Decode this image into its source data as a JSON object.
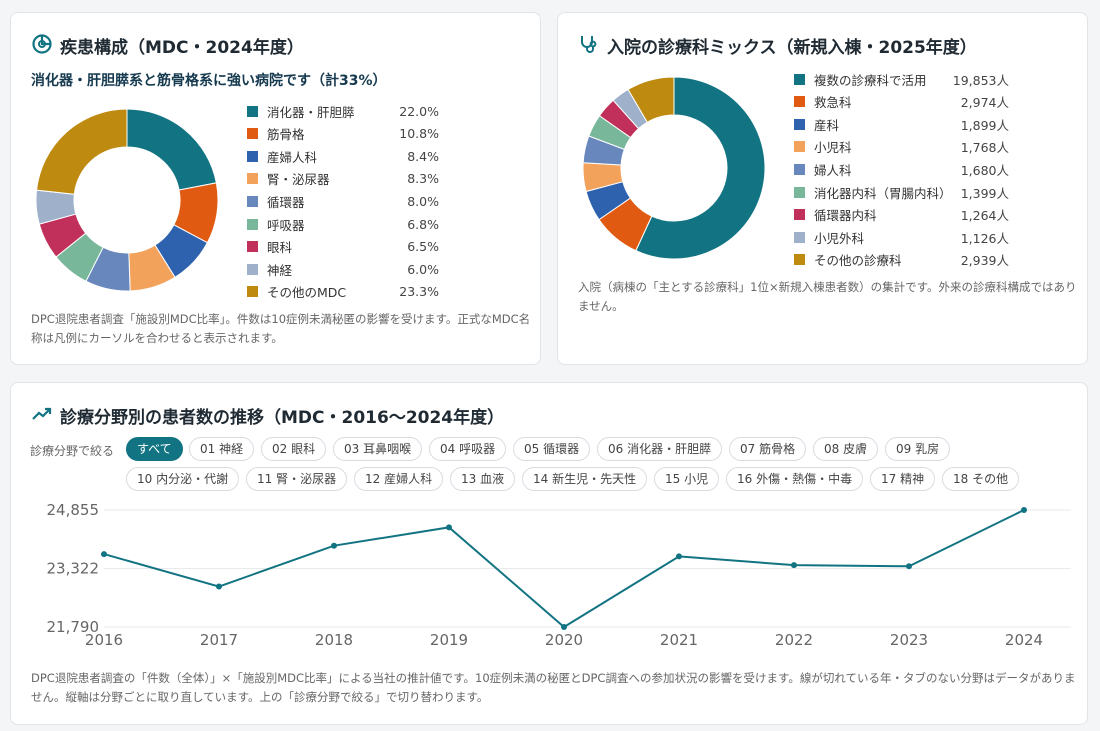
{
  "colors": {
    "teal": "#127482",
    "orange": "#e15a12",
    "blue": "#2e62ae",
    "lightorange": "#f3a25c",
    "steel": "#6887bd",
    "green": "#79b79a",
    "crimson": "#c1305a",
    "lightsteel": "#9fb0cb",
    "gold": "#bf8a10",
    "accent": "#127482"
  },
  "card1": {
    "title": "疾患構成（MDC・2024年度）",
    "icon": "pie-chart-icon",
    "subheading": "消化器・肝胆膵系と筋骨格系に強い病院です（計33%）",
    "legend": [
      {
        "label": "消化器・肝胆膵",
        "value": "22.0%",
        "color": "#127482"
      },
      {
        "label": "筋骨格",
        "value": "10.8%",
        "color": "#e15a12"
      },
      {
        "label": "産婦人科",
        "value": "8.4%",
        "color": "#2e62ae"
      },
      {
        "label": "腎・泌尿器",
        "value": "8.3%",
        "color": "#f3a25c"
      },
      {
        "label": "循環器",
        "value": "8.0%",
        "color": "#6887bd"
      },
      {
        "label": "呼吸器",
        "value": "6.8%",
        "color": "#79b79a"
      },
      {
        "label": "眼科",
        "value": "6.5%",
        "color": "#c1305a"
      },
      {
        "label": "神経",
        "value": "6.0%",
        "color": "#9fb0cb"
      },
      {
        "label": "その他のMDC",
        "value": "23.3%",
        "color": "#bf8a10"
      }
    ],
    "note": "DPC退院患者調査「施設別MDC比率」。件数は10症例未満秘匿の影響を受けます。正式なMDC名称は凡例にカーソルを合わせると表示されます。"
  },
  "card2": {
    "title": "入院の診療科ミックス（新規入棟・2025年度）",
    "icon": "stethoscope-icon",
    "legend": [
      {
        "label": "複数の診療科で活用",
        "value": "19,853人",
        "count": 19853,
        "color": "#127482"
      },
      {
        "label": "救急科",
        "value": "2,974人",
        "count": 2974,
        "color": "#e15a12"
      },
      {
        "label": "産科",
        "value": "1,899人",
        "count": 1899,
        "color": "#2e62ae"
      },
      {
        "label": "小児科",
        "value": "1,768人",
        "count": 1768,
        "color": "#f3a25c"
      },
      {
        "label": "婦人科",
        "value": "1,680人",
        "count": 1680,
        "color": "#6887bd"
      },
      {
        "label": "消化器内科（胃腸内科）",
        "value": "1,399人",
        "count": 1399,
        "color": "#79b79a"
      },
      {
        "label": "循環器内科",
        "value": "1,264人",
        "count": 1264,
        "color": "#c1305a"
      },
      {
        "label": "小児外科",
        "value": "1,126人",
        "count": 1126,
        "color": "#9fb0cb"
      },
      {
        "label": "その他の診療科",
        "value": "2,939人",
        "count": 2939,
        "color": "#bf8a10"
      }
    ],
    "note": "入院（病棟の「主とする診療科」1位×新規入棟患者数）の集計です。外来の診療科構成ではありません。"
  },
  "card3": {
    "title": "診療分野別の患者数の推移（MDC・2016〜2024年度）",
    "icon": "trend-up-icon",
    "filter_label": "診療分野で絞る",
    "chips": [
      "すべて",
      "01 神経",
      "02 眼科",
      "03 耳鼻咽喉",
      "04 呼吸器",
      "05 循環器",
      "06 消化器・肝胆膵",
      "07 筋骨格",
      "08 皮膚",
      "09 乳房",
      "10 内分泌・代謝",
      "11 腎・泌尿器",
      "12 産婦人科",
      "13 血液",
      "14 新生児・先天性",
      "15 小児",
      "16 外傷・熱傷・中毒",
      "17 精神",
      "18 その他"
    ],
    "active_chip": 0,
    "note": "DPC退院患者調査の「件数（全体）」×「施設別MDC比率」による当社の推計値です。10症例未満の秘匿とDPC調査への参加状況の影響を受けます。線が切れている年・タブのない分野はデータがありません。縦軸は分野ごとに取り直しています。上の「診療分野で絞る」で切り替わります。"
  },
  "chart_data": [
    {
      "type": "pie",
      "variant": "donut",
      "categories": [
        "消化器・肝胆膵",
        "筋骨格",
        "産婦人科",
        "腎・泌尿器",
        "循環器",
        "呼吸器",
        "眼科",
        "神経",
        "その他のMDC"
      ],
      "values": [
        22.0,
        10.8,
        8.4,
        8.3,
        8.0,
        6.8,
        6.5,
        6.0,
        23.3
      ]
    },
    {
      "type": "pie",
      "variant": "donut",
      "categories": [
        "複数の診療科で活用",
        "救急科",
        "産科",
        "小児科",
        "婦人科",
        "消化器内科（胃腸内科）",
        "循環器内科",
        "小児外科",
        "その他の診療科"
      ],
      "values": [
        19853,
        2974,
        1899,
        1768,
        1680,
        1399,
        1264,
        1126,
        2939
      ]
    },
    {
      "type": "line",
      "x": [
        "2016",
        "2017",
        "2018",
        "2019",
        "2020",
        "2021",
        "2022",
        "2023",
        "2024"
      ],
      "series": [
        {
          "values": [
            23700,
            22850,
            23920,
            24400,
            21790,
            23640,
            23410,
            23380,
            24855
          ]
        }
      ],
      "yticks": [
        "24,855",
        "23,322",
        "21,790"
      ],
      "ylim": [
        21790,
        24855
      ],
      "grid": true,
      "color": "#127482"
    }
  ]
}
